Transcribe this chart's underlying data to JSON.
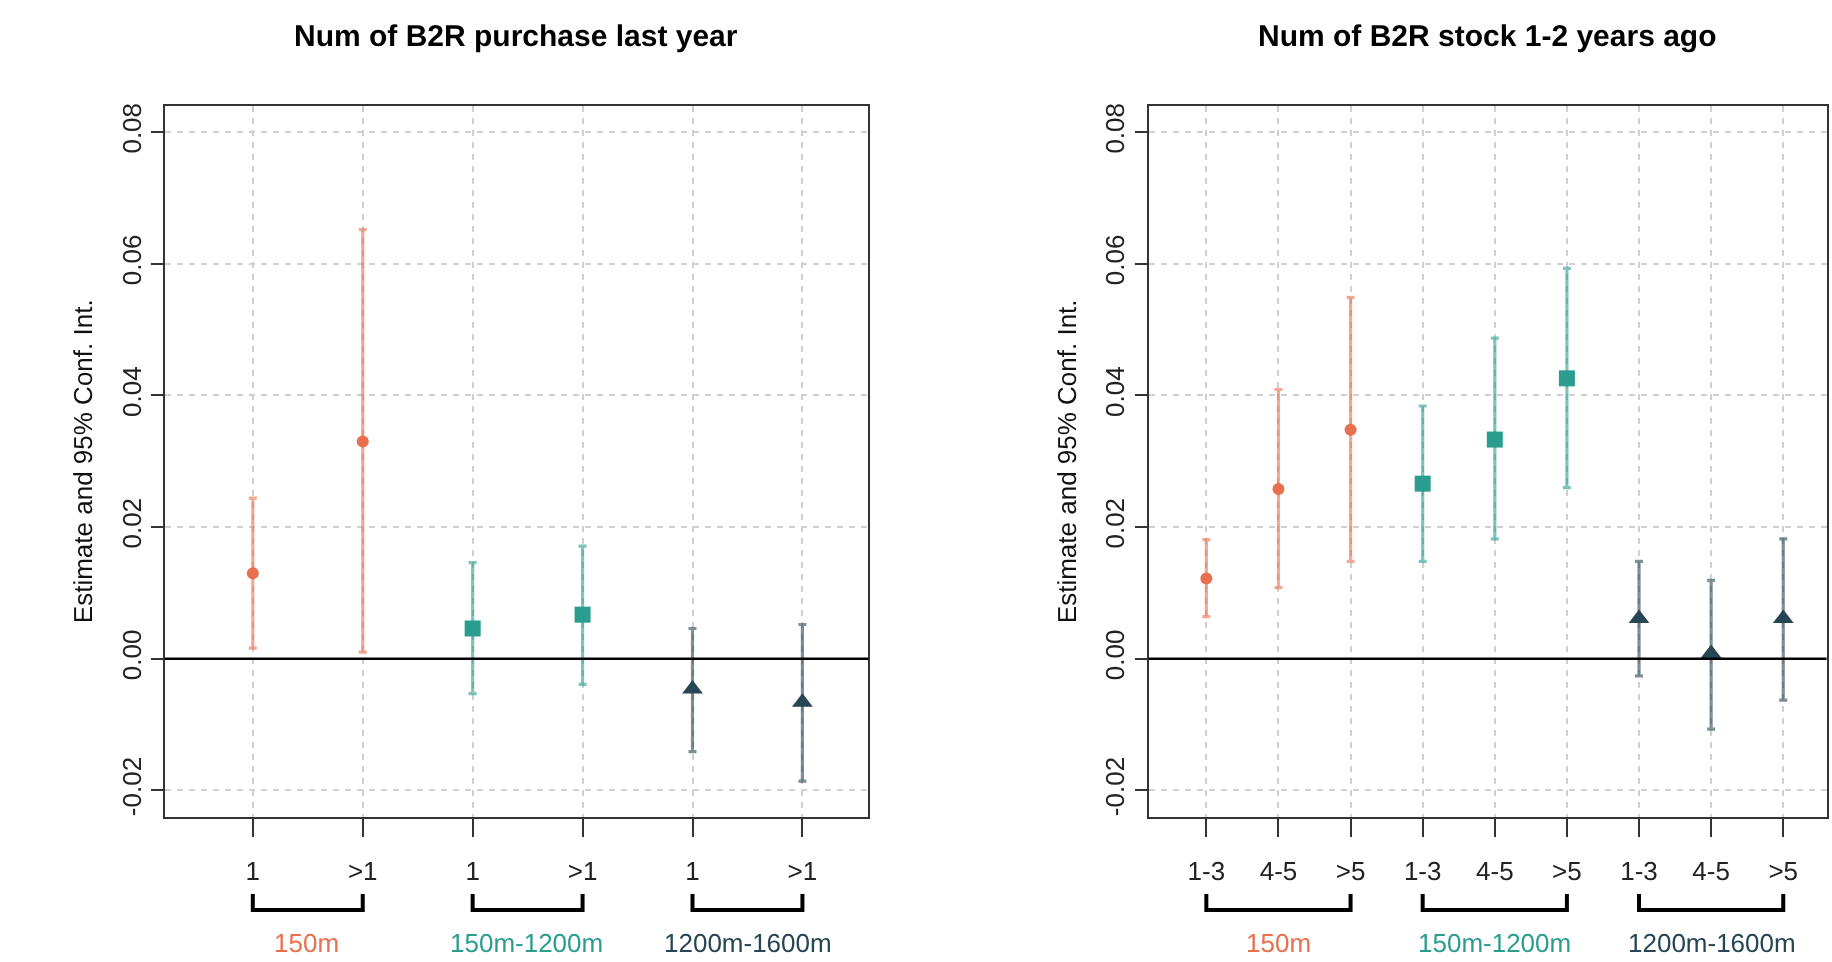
{
  "chart_data": [
    {
      "type": "scatter",
      "title": "Num of B2R purchase last year",
      "ylabel": "Estimate and 95% Conf. Int.",
      "categories": [
        "1",
        ">1",
        "1",
        ">1",
        "1",
        ">1"
      ],
      "series": [
        {
          "name": "150m",
          "color": "#e8704f",
          "marker": "circle",
          "values": [
            0.013,
            0.033,
            null,
            null,
            null,
            null
          ],
          "errors": [
            [
              0.0016,
              0.0244
            ],
            [
              0.001,
              0.0652
            ],
            null,
            null,
            null,
            null
          ]
        },
        {
          "name": "150m-1200m",
          "color": "#2a9d8f",
          "marker": "square",
          "values": [
            null,
            null,
            0.0046,
            0.0067,
            null,
            null
          ],
          "errors": [
            null,
            null,
            [
              -0.0053,
              0.0146
            ],
            [
              -0.0039,
              0.0171
            ],
            null,
            null
          ]
        },
        {
          "name": "1200m-1600m",
          "color": "#264653",
          "marker": "triangle",
          "values": [
            null,
            null,
            null,
            null,
            -0.0046,
            -0.0066
          ],
          "errors": [
            null,
            null,
            null,
            null,
            [
              -0.0141,
              0.0046
            ],
            [
              -0.0186,
              0.0052
            ]
          ]
        }
      ],
      "ylim": [
        -0.024,
        0.084
      ],
      "yticks": [
        {
          "value": -0.02,
          "label": "-0.02"
        },
        {
          "value": 0,
          "label": "0.00"
        },
        {
          "value": 0.02,
          "label": "0.02"
        },
        {
          "value": 0.04,
          "label": "0.04"
        },
        {
          "value": 0.06,
          "label": "0.06"
        },
        {
          "value": 0.08,
          "label": "0.08"
        }
      ],
      "grid": true,
      "legend": false,
      "ref_lines": [
        {
          "axis": "y",
          "value": 0,
          "color": "#000000"
        }
      ]
    },
    {
      "type": "scatter",
      "title": "Num of B2R stock 1-2 years ago",
      "ylabel": "Estimate and 95% Conf. Int.",
      "categories": [
        "1-3",
        "4-5",
        ">5",
        "1-3",
        "4-5",
        ">5",
        "1-3",
        "4-5",
        ">5"
      ],
      "series": [
        {
          "name": "150m",
          "color": "#e8704f",
          "marker": "circle",
          "values": [
            0.0122,
            0.0258,
            0.0348,
            null,
            null,
            null,
            null,
            null,
            null
          ],
          "errors": [
            [
              0.0064,
              0.0181
            ],
            [
              0.0108,
              0.0409
            ],
            [
              0.0148,
              0.0549
            ],
            null,
            null,
            null,
            null,
            null,
            null
          ]
        },
        {
          "name": "150m-1200m",
          "color": "#2a9d8f",
          "marker": "square",
          "values": [
            null,
            null,
            null,
            0.0266,
            0.0333,
            0.0426,
            null,
            null,
            null
          ],
          "errors": [
            null,
            null,
            null,
            [
              0.0148,
              0.0384
            ],
            [
              0.0182,
              0.0487
            ],
            [
              0.026,
              0.0593
            ],
            null,
            null,
            null
          ]
        },
        {
          "name": "1200m-1600m",
          "color": "#264653",
          "marker": "triangle",
          "values": [
            null,
            null,
            null,
            null,
            null,
            null,
            0.0061,
            0.0008,
            0.0061
          ],
          "errors": [
            null,
            null,
            null,
            null,
            null,
            null,
            [
              -0.0026,
              0.0148
            ],
            [
              -0.0107,
              0.0119
            ],
            [
              -0.0063,
              0.0182
            ]
          ]
        }
      ],
      "ylim": [
        -0.024,
        0.084
      ],
      "yticks": [
        {
          "value": -0.02,
          "label": "-0.02"
        },
        {
          "value": 0,
          "label": "0.00"
        },
        {
          "value": 0.02,
          "label": "0.02"
        },
        {
          "value": 0.04,
          "label": "0.04"
        },
        {
          "value": 0.06,
          "label": "0.06"
        },
        {
          "value": 0.08,
          "label": "0.08"
        }
      ],
      "grid": true,
      "legend": false,
      "ref_lines": [
        {
          "axis": "y",
          "value": 0,
          "color": "#000000"
        }
      ]
    }
  ]
}
